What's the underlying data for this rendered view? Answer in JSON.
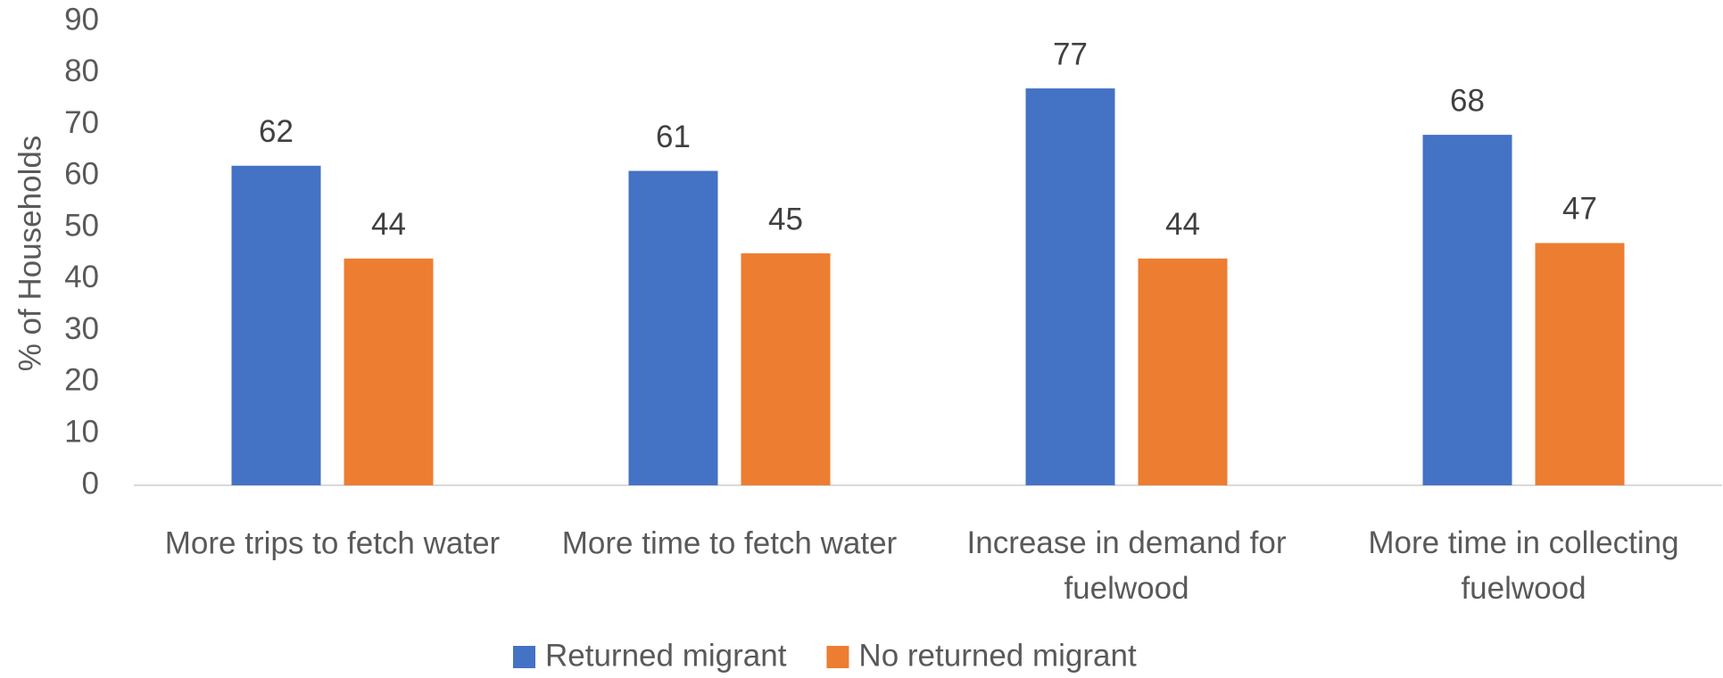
{
  "chart_data": {
    "type": "bar",
    "y_label": "% of Households",
    "categories": [
      "More trips to fetch water",
      "More time to fetch water",
      "Increase in demand for fuelwood",
      "More time in collecting fuelwood"
    ],
    "series": [
      {
        "name": "Returned migrant",
        "color": "#4472c4",
        "values": [
          62,
          61,
          77,
          68
        ]
      },
      {
        "name": "No returned migrant",
        "color": "#ed7d31",
        "values": [
          44,
          45,
          44,
          47
        ]
      }
    ],
    "ylim": [
      0,
      90
    ],
    "yticks": [
      0,
      10,
      20,
      30,
      40,
      50,
      60,
      70,
      80,
      90
    ],
    "grid": false,
    "legend": "bottom"
  }
}
